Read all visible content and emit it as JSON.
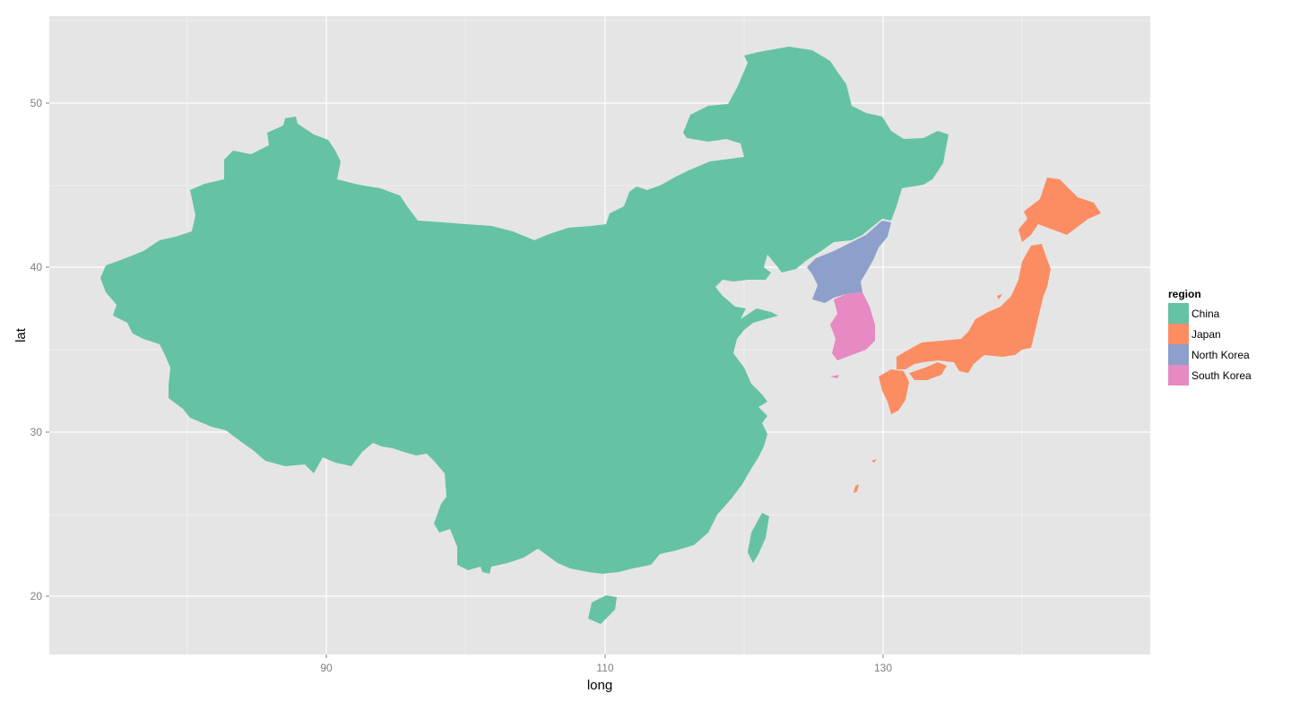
{
  "chart_data": {
    "type": "map",
    "x_axis": {
      "label": "long",
      "ticks": [
        "90",
        "110",
        "130"
      ],
      "range": [
        59.5,
        138.5
      ]
    },
    "y_axis": {
      "label": "lat",
      "ticks": [
        "20",
        "30",
        "40",
        "50"
      ],
      "range": [
        16.5,
        55.3
      ]
    },
    "grid": true,
    "panel_background": "#e5e5e5",
    "legend": {
      "title": "region",
      "position": "right",
      "entries": [
        {
          "label": "China",
          "color": "#66c2a5"
        },
        {
          "label": "Japan",
          "color": "#fc8d62"
        },
        {
          "label": "North Korea",
          "color": "#8da0cb"
        },
        {
          "label": "South Korea",
          "color": "#e78ac3"
        }
      ]
    }
  }
}
